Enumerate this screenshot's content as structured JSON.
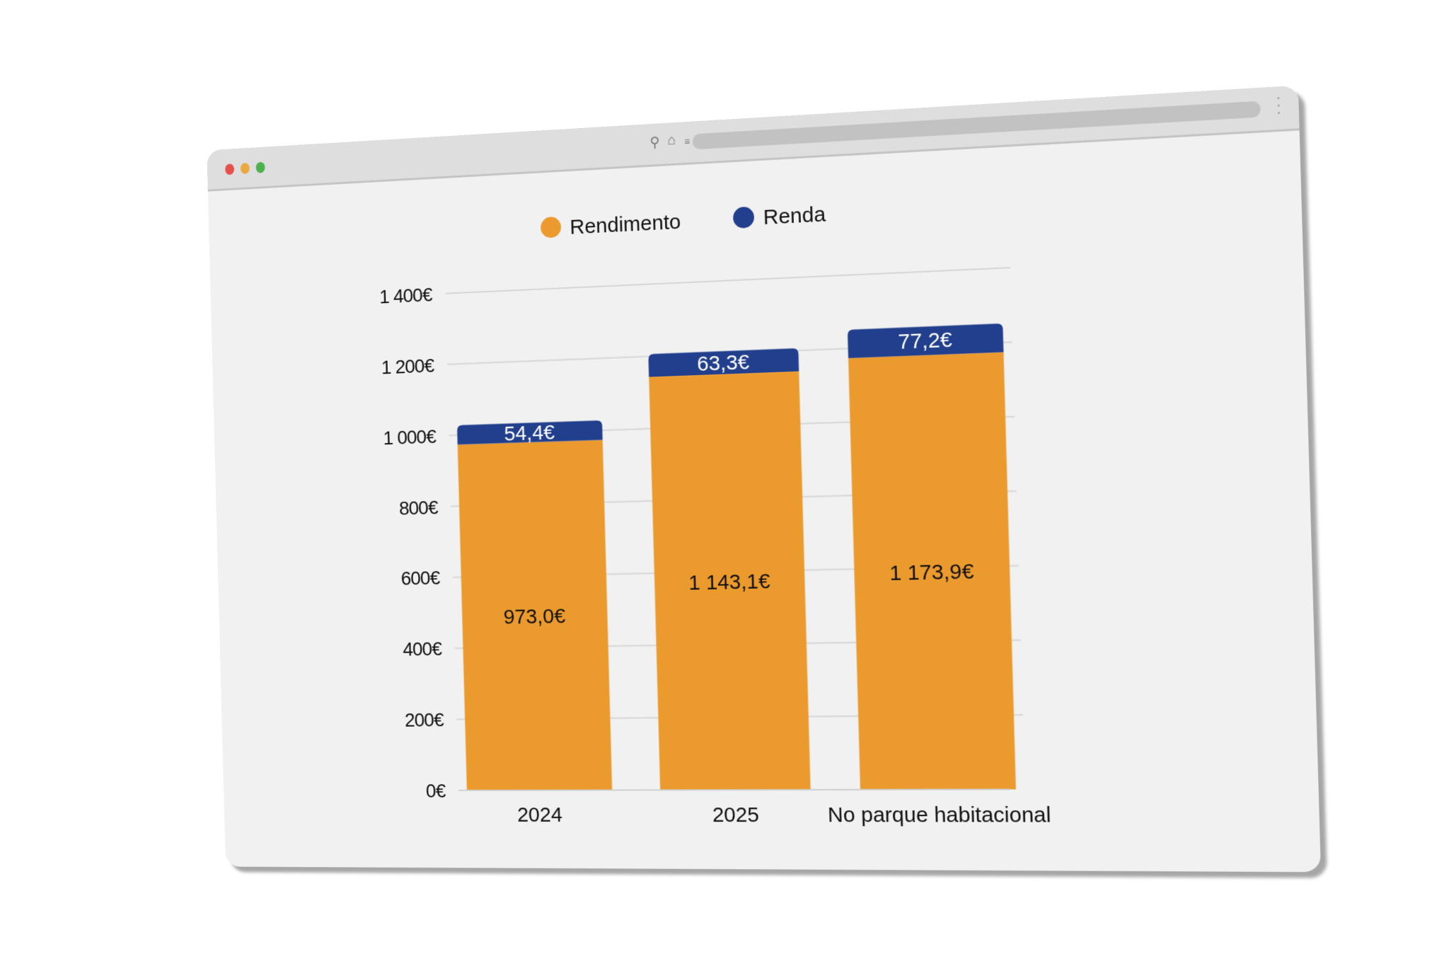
{
  "window": {
    "icons": [
      "search-icon",
      "home-icon",
      "settings-icon",
      "more-vertical-icon"
    ]
  },
  "colors": {
    "rendimento": "#eb9a2e",
    "renda": "#213f8c",
    "grid": "#d6d6d6"
  },
  "chart_data": {
    "type": "bar",
    "stacked": true,
    "categories": [
      "2024",
      "2025",
      "No parque habitacional"
    ],
    "series": [
      {
        "name": "Rendimento",
        "values": [
          973.0,
          1143.1,
          1173.9
        ],
        "labels": [
          "973,0€",
          "1 143,1€",
          "1 173,9€"
        ]
      },
      {
        "name": "Renda",
        "values": [
          54.4,
          63.3,
          77.2
        ],
        "labels": [
          "54,4€",
          "63,3€",
          "77,2€"
        ]
      }
    ],
    "yticks": [
      0,
      200,
      400,
      600,
      800,
      1000,
      1200,
      1400
    ],
    "ytick_labels": [
      "0€",
      "200€",
      "400€",
      "600€",
      "800€",
      "1 000€",
      "1 200€",
      "1 400€"
    ],
    "ylim": [
      0,
      1400
    ],
    "grid": true,
    "legend": "top-center",
    "title": "",
    "xlabel": "",
    "ylabel": ""
  }
}
